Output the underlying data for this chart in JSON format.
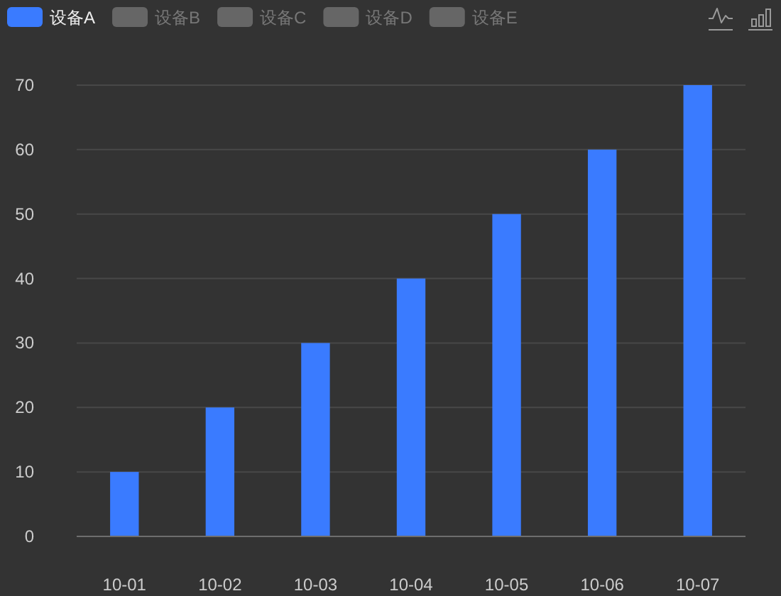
{
  "chart_data": {
    "type": "bar",
    "categories": [
      "10-01",
      "10-02",
      "10-03",
      "10-04",
      "10-05",
      "10-06",
      "10-07"
    ],
    "series": [
      {
        "name": "设备A",
        "color": "#3a7bff",
        "values": [
          10,
          20,
          30,
          40,
          50,
          60,
          70
        ]
      },
      {
        "name": "设备B",
        "color": "#666666",
        "values": [
          null,
          null,
          null,
          null,
          null,
          null,
          null
        ]
      },
      {
        "name": "设备C",
        "color": "#666666",
        "values": [
          null,
          null,
          null,
          null,
          null,
          null,
          null
        ]
      },
      {
        "name": "设备D",
        "color": "#666666",
        "values": [
          null,
          null,
          null,
          null,
          null,
          null,
          null
        ]
      },
      {
        "name": "设备E",
        "color": "#666666",
        "values": [
          null,
          null,
          null,
          null,
          null,
          null,
          null
        ]
      }
    ],
    "ylim": [
      0,
      70
    ],
    "yticks": [
      0,
      10,
      20,
      30,
      40,
      50,
      60,
      70
    ],
    "grid": "y",
    "legend": "top left"
  }
}
